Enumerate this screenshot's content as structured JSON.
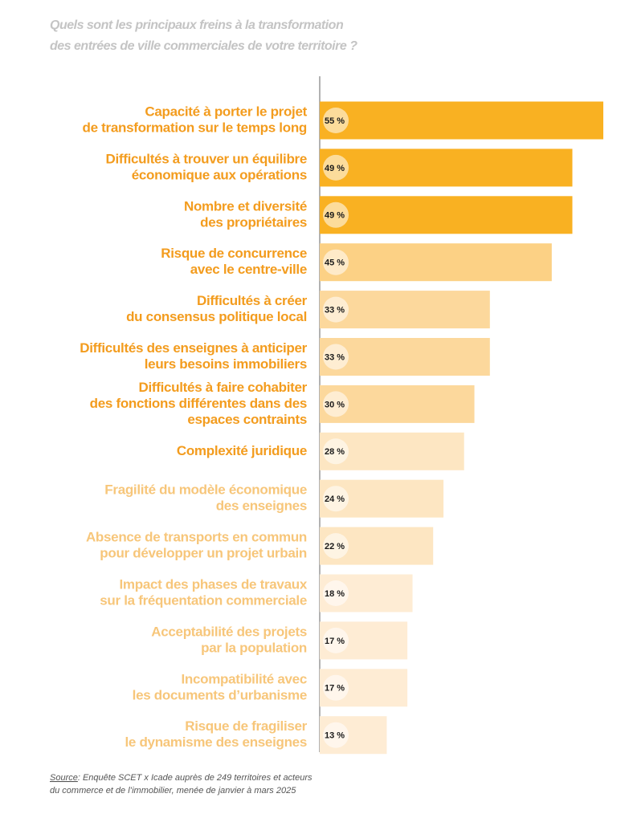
{
  "chart_data": {
    "type": "bar",
    "orientation": "horizontal",
    "title": [
      "Quels sont les principaux freins à la transformation",
      "des entrées de ville commerciales de votre territoire ?"
    ],
    "categories": [
      [
        "Capacité à porter le projet",
        "de transformation sur le temps long"
      ],
      [
        "Difficultés à trouver un équilibre",
        "économique aux opérations"
      ],
      [
        "Nombre et diversité",
        "des propriétaires"
      ],
      [
        "Risque de concurrence",
        "avec le centre-ville"
      ],
      [
        "Difficultés à créer",
        "du consensus politique local"
      ],
      [
        "Difficultés des enseignes à anticiper",
        "leurs besoins immobiliers"
      ],
      [
        "Difficultés à faire cohabiter",
        "des fonctions différentes dans des",
        "espaces contraints"
      ],
      [
        "Complexité juridique"
      ],
      [
        "Fragilité du modèle économique",
        "des enseignes"
      ],
      [
        "Absence de transports en commun",
        "pour développer un projet urbain"
      ],
      [
        "Impact des phases de travaux",
        "sur la fréquentation commerciale"
      ],
      [
        "Acceptabilité des projets",
        "par la population"
      ],
      [
        "Incompatibilité avec",
        "les documents d’urbanisme"
      ],
      [
        "Risque de fragiliser",
        "le dynamisme des enseignes"
      ]
    ],
    "values": [
      55,
      49,
      49,
      45,
      33,
      33,
      30,
      28,
      24,
      22,
      18,
      17,
      17,
      13
    ],
    "value_labels": [
      "55 %",
      "49 %",
      "49 %",
      "45 %",
      "33 %",
      "33 %",
      "30 %",
      "28 %",
      "24 %",
      "22 %",
      "18 %",
      "17 %",
      "17 %",
      "13 %"
    ],
    "colors": [
      "#f9b122",
      "#f9b122",
      "#f9b122",
      "#fcd185",
      "#fcd89c",
      "#fcd89c",
      "#fcd89c",
      "#fde6c2",
      "#fde6c2",
      "#fde6c2",
      "#feecd4",
      "#feecd4",
      "#feecd4",
      "#feecd4"
    ],
    "label_colors": [
      "#f39c1e",
      "#f39c1e",
      "#f39c1e",
      "#f39c1e",
      "#f39c1e",
      "#f39c1e",
      "#f39c1e",
      "#f39c1e",
      "#f7c67a",
      "#f7c67a",
      "#f7c67a",
      "#f7c67a",
      "#f7c67a",
      "#f7c67a"
    ],
    "xlim": [
      0,
      55
    ],
    "source": [
      "Source",
      ": Enquête SCET x Icade auprès de 249 territoires et acteurs",
      "du commerce et de l’immobilier, menée de janvier à mars 2025"
    ]
  }
}
